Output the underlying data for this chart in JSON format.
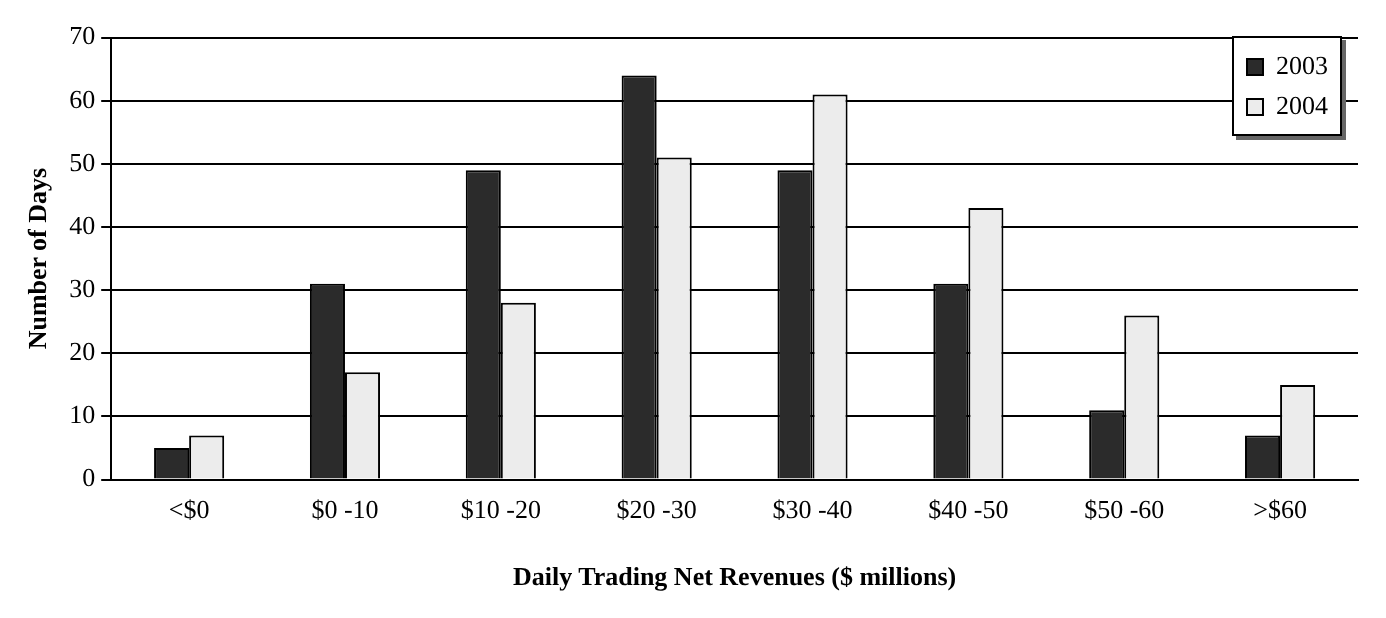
{
  "chart_data": {
    "type": "bar",
    "xlabel": "Daily Trading Net Revenues ($ millions)",
    "ylabel": "Number of Days",
    "categories": [
      "<$0",
      "$0 -10",
      "$10 -20",
      "$20 -30",
      "$30 -40",
      "$40 -50",
      "$50 -60",
      ">$60"
    ],
    "series": [
      {
        "name": "2003",
        "color": "#2b2b2b",
        "values": [
          5,
          31,
          49,
          64,
          49,
          31,
          11,
          7
        ]
      },
      {
        "name": "2004",
        "color": "#ececec",
        "values": [
          7,
          17,
          28,
          51,
          61,
          43,
          26,
          15
        ]
      }
    ],
    "ylim": [
      0,
      70
    ],
    "yticks": [
      0,
      10,
      20,
      30,
      40,
      50,
      60,
      70
    ],
    "grid": "y",
    "legend": "top right"
  }
}
